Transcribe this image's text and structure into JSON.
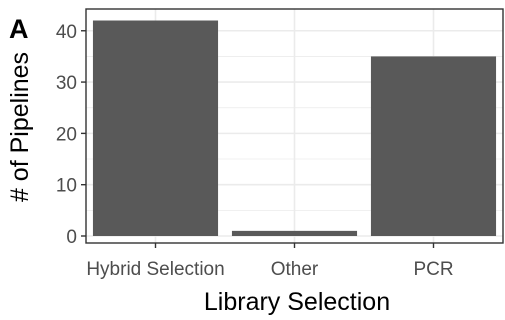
{
  "panel_tag": "A",
  "chart_data": {
    "type": "bar",
    "categories": [
      "Hybrid Selection",
      "Other",
      "PCR"
    ],
    "values": [
      42,
      1,
      35
    ],
    "xlabel": "Library Selection",
    "ylabel": "# of Pipelines",
    "ylim": [
      0,
      44
    ],
    "yticks": [
      0,
      10,
      20,
      30,
      40
    ],
    "grid": true,
    "bar_color": "#595959",
    "grid_color": "#ebebeb",
    "panel_border_color": "#333333"
  }
}
